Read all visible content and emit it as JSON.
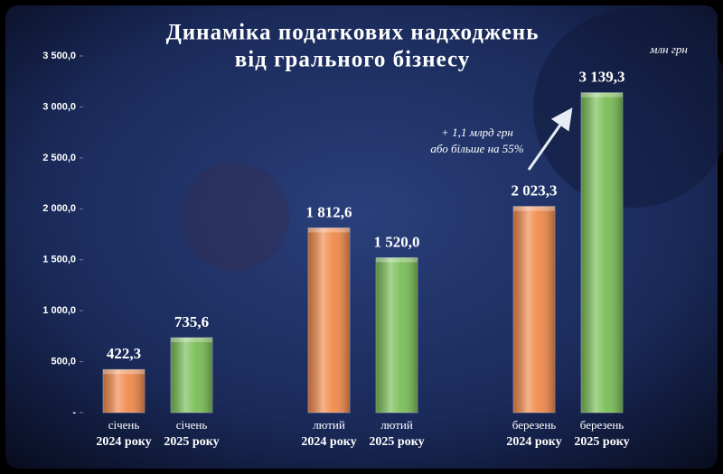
{
  "chart_data": {
    "type": "bar",
    "title": [
      "Динаміка податкових надходжень",
      "від грального бізнесу"
    ],
    "unit_label": "млн грн",
    "categories": [
      [
        "січень",
        "2024 року"
      ],
      [
        "січень",
        "2025 року"
      ],
      [
        "лютий",
        "2024 року"
      ],
      [
        "лютий",
        "2025 року"
      ],
      [
        "березень",
        "2024 року"
      ],
      [
        "березень",
        "2025 року"
      ]
    ],
    "values": [
      422.3,
      735.6,
      1812.6,
      1520.0,
      2023.3,
      3139.3
    ],
    "value_labels": [
      "422,3",
      "735,6",
      "1 812,6",
      "1 520,0",
      "2 023,3",
      "3 139,3"
    ],
    "colors": [
      "#f0894a",
      "#79bd55",
      "#f0894a",
      "#79bd55",
      "#f0894a",
      "#79bd55"
    ],
    "ylim": [
      0,
      3500
    ],
    "yticks": [
      {
        "value": 0,
        "label": "-"
      },
      {
        "value": 500,
        "label": "500,0"
      },
      {
        "value": 1000,
        "label": "1 000,0"
      },
      {
        "value": 1500,
        "label": "1 500,0"
      },
      {
        "value": 2000,
        "label": "2 000,0"
      },
      {
        "value": 2500,
        "label": "2 500,0"
      },
      {
        "value": 3000,
        "label": "3 000,0"
      },
      {
        "value": 3500,
        "label": "3 500,0"
      }
    ],
    "annotation": [
      "+ 1,1 млрд грн",
      "або більше на 55%"
    ]
  }
}
